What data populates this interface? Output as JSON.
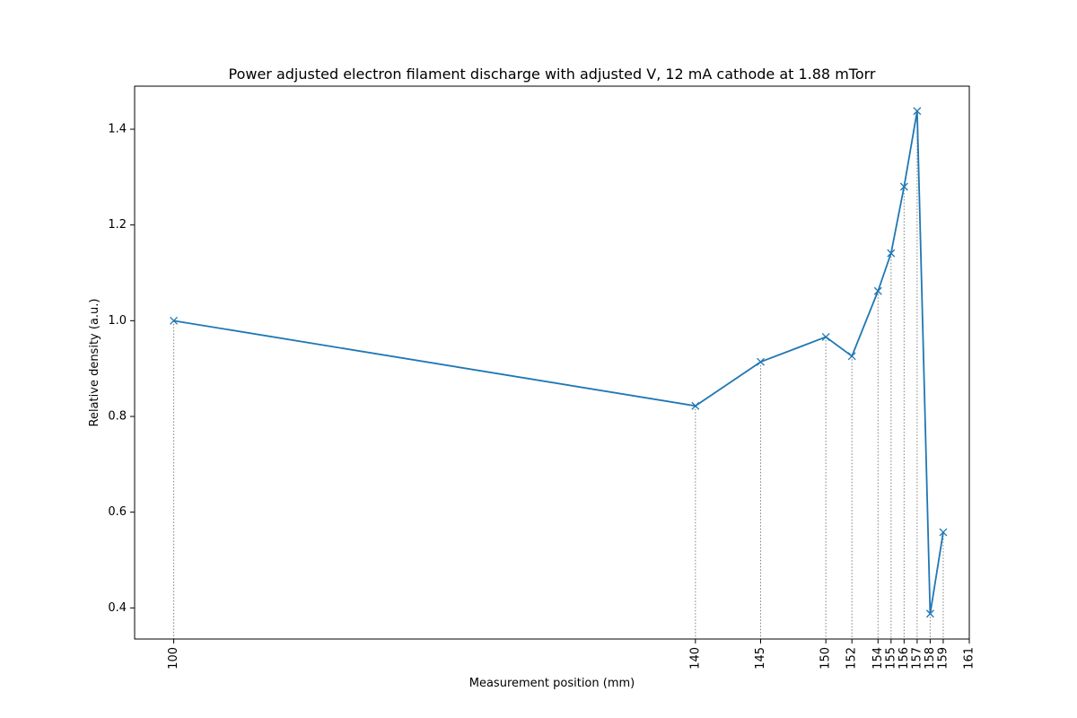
{
  "chart_data": {
    "type": "line",
    "title": "Power adjusted electron filament discharge with adjusted V, 12 mA cathode at 1.88 mTorr",
    "xlabel": "Measurement position (mm)",
    "ylabel": "Relative density (a.u.)",
    "xlim": [
      97,
      161
    ],
    "ylim": [
      0.335,
      1.49
    ],
    "x_ticks": [
      100,
      140,
      145,
      150,
      152,
      154,
      155,
      156,
      157,
      158,
      159,
      161
    ],
    "y_ticks": [
      0.4,
      0.6,
      0.8,
      1.0,
      1.2,
      1.4
    ],
    "y_tick_labels": [
      "0.4",
      "0.6",
      "0.8",
      "1.0",
      "1.2",
      "1.4"
    ],
    "grid": false,
    "marker": "x",
    "drop_lines": "dotted vertical lines from each point to the x-axis",
    "series": [
      {
        "color": "#1f77b4",
        "x": [
          100,
          140,
          145,
          150,
          152,
          154,
          155,
          156,
          157,
          158,
          159
        ],
        "y": [
          1.0,
          0.822,
          0.914,
          0.966,
          0.926,
          1.062,
          1.141,
          1.28,
          1.438,
          0.388,
          0.558
        ]
      }
    ]
  }
}
